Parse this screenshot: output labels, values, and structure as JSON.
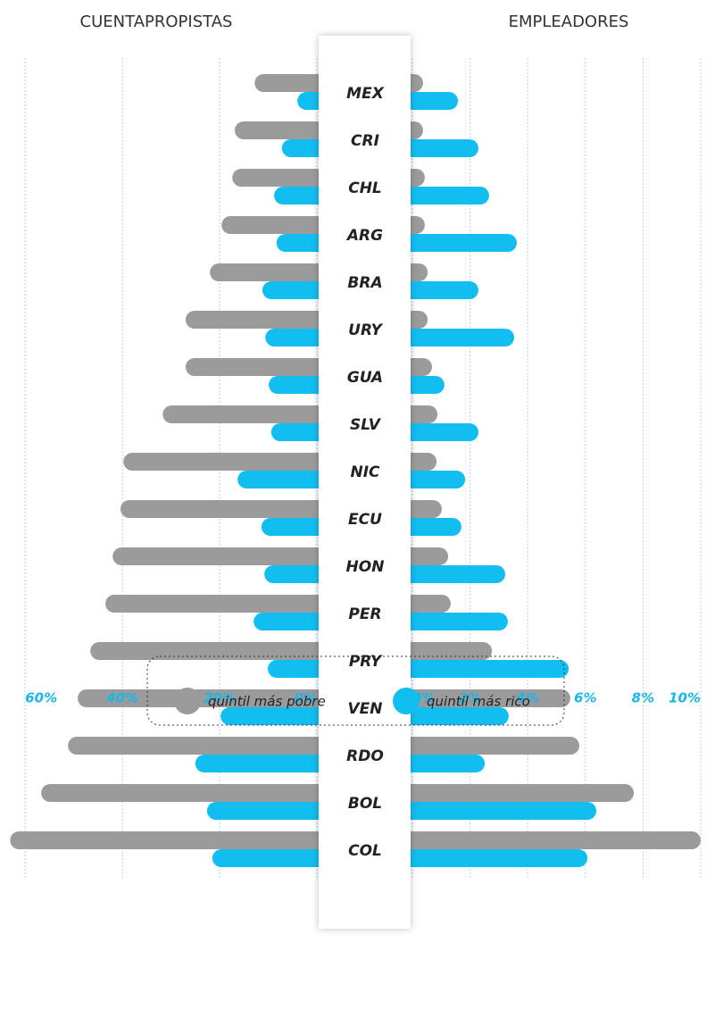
{
  "chart_data": {
    "type": "butterfly",
    "categories": [
      "MEX",
      "CRI",
      "CHL",
      "ARG",
      "BRA",
      "URY",
      "GUA",
      "SLV",
      "NIC",
      "ECU",
      "HON",
      "PER",
      "PRY",
      "VEN",
      "RDO",
      "BOL",
      "COL"
    ],
    "series": [
      {
        "name": "quintil más pobre",
        "color": "#9b9b9b"
      },
      {
        "name": "quintil más rico",
        "color": "#12bdf0"
      }
    ],
    "panels": [
      {
        "title": "CUENTAPROPISTAS",
        "side": "left",
        "xlim": [
          0,
          65
        ],
        "xticks": [
          {
            "value": 0,
            "label": "0%"
          },
          {
            "value": 20,
            "label": "20%"
          },
          {
            "value": 40,
            "label": "40%"
          },
          {
            "value": 60,
            "label": "60%"
          }
        ],
        "values": [
          [
            12.8,
            16.9,
            17.4,
            19.6,
            22,
            27,
            27,
            31.7,
            39.8,
            40.4,
            42,
            43.5,
            46.6,
            49.2,
            51.2,
            56.7,
            63.1
          ],
          [
            4,
            7.2,
            8.8,
            8.3,
            11.2,
            10.6,
            9.9,
            9.4,
            16.3,
            11.4,
            10.8,
            13,
            10.1,
            19.8,
            25,
            22.6,
            21.5
          ]
        ]
      },
      {
        "title": "EMPLEADORES",
        "side": "right",
        "xlim": [
          0,
          10
        ],
        "xticks": [
          {
            "value": 0,
            "label": "0%"
          },
          {
            "value": 2,
            "label": "2%"
          },
          {
            "value": 4,
            "label": "4%"
          },
          {
            "value": 6,
            "label": "6%"
          },
          {
            "value": 8,
            "label": "8%"
          },
          {
            "value": 10,
            "label": "10%"
          }
        ],
        "values": [
          [
            0.37,
            0.37,
            0.43,
            0.43,
            0.53,
            0.53,
            0.68,
            0.87,
            0.84,
            1.02,
            1.24,
            1.33,
            2.76,
            5.48,
            5.79,
            7.68,
            10
          ],
          [
            1.58,
            2.29,
            2.66,
            3.62,
            2.29,
            3.53,
            1.11,
            2.29,
            1.83,
            1.7,
            3.22,
            3.31,
            5.42,
            3.34,
            2.51,
            6.38,
            6.07
          ]
        ]
      }
    ]
  }
}
